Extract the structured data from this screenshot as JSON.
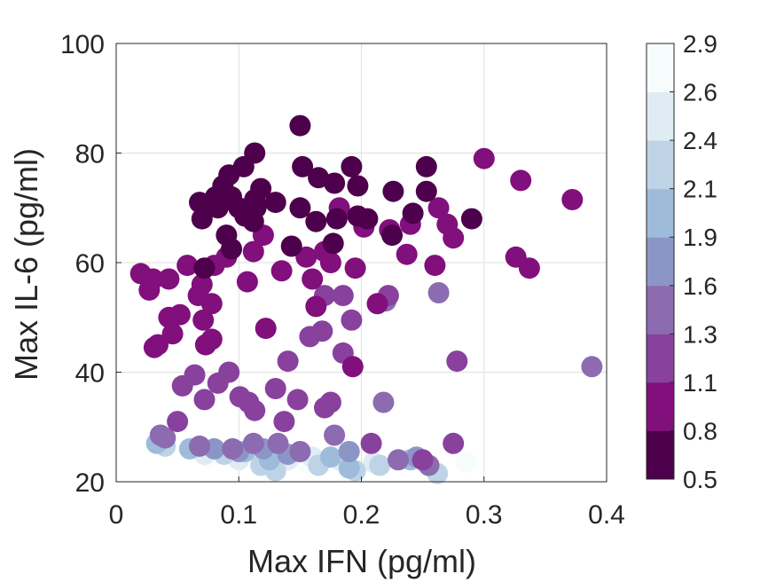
{
  "chart_data": {
    "type": "scatter",
    "xlabel": "Max IFN (pg/ml)",
    "ylabel": "Max IL-6 (pg/ml)",
    "xlim": [
      0,
      0.4
    ],
    "ylim": [
      20,
      100
    ],
    "xticks": [
      "0",
      "0.1",
      "0.2",
      "0.3",
      "0.4"
    ],
    "yticks": [
      "20",
      "40",
      "60",
      "80",
      "100"
    ],
    "grid": true,
    "colorbar": {
      "ticks": [
        "0.5",
        "0.8",
        "1.1",
        "1.3",
        "1.6",
        "1.9",
        "2.1",
        "2.4",
        "2.6",
        "2.9"
      ],
      "colors": [
        "#4d004b",
        "#810f7c",
        "#88419d",
        "#8c6bb1",
        "#8c96c6",
        "#9ebcda",
        "#bfd3e6",
        "#e0ecf4",
        "#f7fcfd"
      ]
    },
    "points": [
      [
        0.15,
        85,
        0
      ],
      [
        0.113,
        80,
        0
      ],
      [
        0.152,
        77.5,
        0
      ],
      [
        0.253,
        77.5,
        0
      ],
      [
        0.192,
        77.5,
        0
      ],
      [
        0.165,
        75.5,
        0
      ],
      [
        0.092,
        76,
        0
      ],
      [
        0.104,
        77.5,
        0
      ],
      [
        0.197,
        74,
        0
      ],
      [
        0.178,
        74.5,
        0
      ],
      [
        0.087,
        74,
        0
      ],
      [
        0.118,
        73.5,
        0
      ],
      [
        0.226,
        73,
        0
      ],
      [
        0.253,
        73,
        0
      ],
      [
        0.081,
        72,
        0
      ],
      [
        0.094,
        72,
        0
      ],
      [
        0.113,
        71.5,
        0
      ],
      [
        0.13,
        71,
        0
      ],
      [
        0.068,
        71,
        0
      ],
      [
        0.083,
        70,
        0
      ],
      [
        0.1,
        70,
        0
      ],
      [
        0.114,
        70,
        0
      ],
      [
        0.15,
        70,
        0
      ],
      [
        0.105,
        68.5,
        0
      ],
      [
        0.07,
        68,
        0
      ],
      [
        0.112,
        67.5,
        0
      ],
      [
        0.163,
        67.5,
        0
      ],
      [
        0.18,
        68,
        0
      ],
      [
        0.197,
        68.5,
        0
      ],
      [
        0.205,
        68,
        0
      ],
      [
        0.242,
        69,
        0
      ],
      [
        0.29,
        68,
        0
      ],
      [
        0.09,
        65,
        0
      ],
      [
        0.225,
        65,
        0
      ],
      [
        0.094,
        62.5,
        0
      ],
      [
        0.143,
        63,
        0
      ],
      [
        0.177,
        63.5,
        0
      ],
      [
        0.072,
        59,
        0
      ],
      [
        0.3,
        79,
        1
      ],
      [
        0.33,
        75,
        1
      ],
      [
        0.372,
        71.5,
        1
      ],
      [
        0.263,
        70,
        1
      ],
      [
        0.182,
        70,
        1
      ],
      [
        0.27,
        67,
        1
      ],
      [
        0.202,
        66.5,
        1
      ],
      [
        0.223,
        66,
        1
      ],
      [
        0.12,
        65,
        1
      ],
      [
        0.24,
        67,
        1
      ],
      [
        0.275,
        64.5,
        1
      ],
      [
        0.17,
        62,
        1
      ],
      [
        0.112,
        62,
        1
      ],
      [
        0.155,
        61,
        1
      ],
      [
        0.09,
        61,
        1
      ],
      [
        0.175,
        60,
        1
      ],
      [
        0.237,
        61.5,
        1
      ],
      [
        0.326,
        61,
        1
      ],
      [
        0.337,
        59,
        1
      ],
      [
        0.26,
        59.5,
        1
      ],
      [
        0.195,
        59,
        1
      ],
      [
        0.135,
        58.5,
        1
      ],
      [
        0.08,
        59.5,
        1
      ],
      [
        0.058,
        59.5,
        1
      ],
      [
        0.02,
        58,
        1
      ],
      [
        0.03,
        57,
        1
      ],
      [
        0.043,
        57,
        1
      ],
      [
        0.07,
        56,
        1
      ],
      [
        0.107,
        56.5,
        1
      ],
      [
        0.16,
        57,
        1
      ],
      [
        0.027,
        55,
        1
      ],
      [
        0.067,
        54,
        1
      ],
      [
        0.078,
        52.5,
        1
      ],
      [
        0.163,
        52,
        1
      ],
      [
        0.213,
        52.5,
        1
      ],
      [
        0.043,
        50,
        1
      ],
      [
        0.052,
        50.5,
        1
      ],
      [
        0.071,
        49.5,
        1
      ],
      [
        0.046,
        47,
        1
      ],
      [
        0.122,
        48,
        1
      ],
      [
        0.073,
        45,
        1
      ],
      [
        0.078,
        46,
        1
      ],
      [
        0.034,
        45,
        1
      ],
      [
        0.031,
        44.5,
        1
      ],
      [
        0.193,
        41,
        1
      ],
      [
        0.222,
        54,
        2
      ],
      [
        0.185,
        54,
        2
      ],
      [
        0.17,
        54,
        2
      ],
      [
        0.192,
        49.5,
        2
      ],
      [
        0.168,
        47.5,
        2
      ],
      [
        0.158,
        46.5,
        2
      ],
      [
        0.185,
        43.5,
        2
      ],
      [
        0.14,
        42,
        2
      ],
      [
        0.278,
        42,
        2
      ],
      [
        0.092,
        40,
        2
      ],
      [
        0.064,
        39.5,
        2
      ],
      [
        0.083,
        38,
        2
      ],
      [
        0.054,
        37.5,
        2
      ],
      [
        0.13,
        37,
        2
      ],
      [
        0.101,
        35.5,
        2
      ],
      [
        0.108,
        34.5,
        2
      ],
      [
        0.072,
        35,
        2
      ],
      [
        0.148,
        35,
        2
      ],
      [
        0.175,
        34.5,
        2
      ],
      [
        0.113,
        33,
        2
      ],
      [
        0.17,
        33.5,
        2
      ],
      [
        0.137,
        31,
        2
      ],
      [
        0.05,
        31,
        2
      ],
      [
        0.208,
        27,
        2
      ],
      [
        0.275,
        27,
        2
      ],
      [
        0.25,
        24,
        2
      ],
      [
        0.388,
        41,
        3
      ],
      [
        0.263,
        54.5,
        3
      ],
      [
        0.22,
        53,
        3
      ],
      [
        0.218,
        34.5,
        3
      ],
      [
        0.036,
        28.5,
        3
      ],
      [
        0.04,
        28,
        3
      ],
      [
        0.068,
        26.5,
        3
      ],
      [
        0.095,
        26,
        3
      ],
      [
        0.112,
        27,
        3
      ],
      [
        0.132,
        27,
        3
      ],
      [
        0.15,
        25.5,
        3
      ],
      [
        0.178,
        28.5,
        3
      ],
      [
        0.23,
        24,
        3
      ],
      [
        0.255,
        23,
        3
      ],
      [
        0.12,
        26,
        4
      ],
      [
        0.14,
        25,
        4
      ],
      [
        0.19,
        25.5,
        4
      ],
      [
        0.245,
        24.5,
        4
      ],
      [
        0.08,
        26,
        4
      ],
      [
        0.1,
        25.5,
        4
      ],
      [
        0.033,
        27,
        5
      ],
      [
        0.105,
        25.5,
        5
      ],
      [
        0.125,
        24,
        5
      ],
      [
        0.175,
        24.5,
        5
      ],
      [
        0.19,
        22.5,
        5
      ],
      [
        0.24,
        24,
        5
      ],
      [
        0.06,
        26,
        5
      ],
      [
        0.04,
        26.5,
        6
      ],
      [
        0.088,
        25,
        6
      ],
      [
        0.118,
        23,
        6
      ],
      [
        0.13,
        22,
        6
      ],
      [
        0.165,
        23,
        6
      ],
      [
        0.195,
        22,
        6
      ],
      [
        0.215,
        23,
        6
      ],
      [
        0.262,
        21.5,
        6
      ],
      [
        0.1,
        24,
        7
      ],
      [
        0.14,
        24,
        7
      ],
      [
        0.16,
        24.5,
        7
      ],
      [
        0.182,
        24,
        7
      ],
      [
        0.21,
        23.5,
        7
      ],
      [
        0.072,
        25,
        7
      ],
      [
        0.125,
        25.5,
        7
      ],
      [
        0.075,
        24.5,
        8
      ],
      [
        0.118,
        25,
        8
      ],
      [
        0.155,
        23.5,
        8
      ],
      [
        0.285,
        23.5,
        8
      ],
      [
        0.19,
        21.5,
        8
      ]
    ]
  }
}
